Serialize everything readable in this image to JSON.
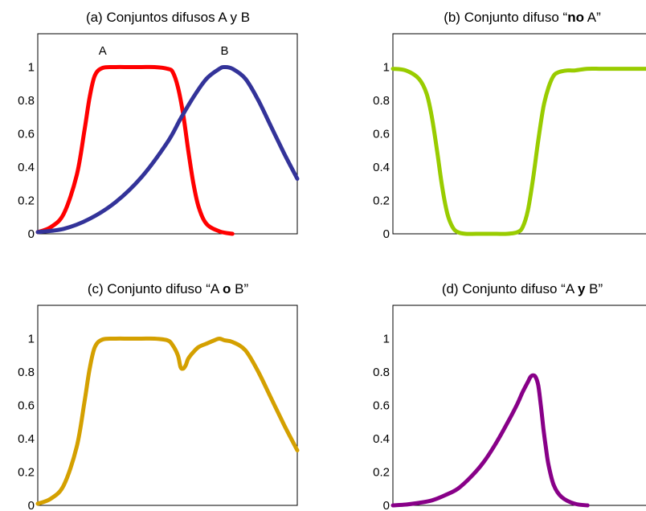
{
  "chart_data": [
    {
      "id": "a",
      "type": "line",
      "title_parts": [
        {
          "text": "(a) Conjuntos difusos A y B",
          "bold": false
        }
      ],
      "ylim": [
        0,
        1.2
      ],
      "yticks": [
        "0",
        "0.2",
        "0.4",
        "0.6",
        "0.8",
        "1"
      ],
      "xlim": [
        0,
        100
      ],
      "series": [
        {
          "name": "A",
          "color": "#ff0000",
          "x": [
            0,
            5,
            10,
            15,
            18,
            20,
            22,
            25,
            30,
            35,
            40,
            45,
            50,
            52,
            54,
            56,
            58,
            60,
            62,
            65,
            70,
            75
          ],
          "y": [
            0.01,
            0.04,
            0.12,
            0.35,
            0.62,
            0.82,
            0.95,
            0.995,
            1.0,
            1.0,
            1.0,
            1.0,
            0.99,
            0.97,
            0.88,
            0.72,
            0.5,
            0.3,
            0.16,
            0.06,
            0.015,
            0.0
          ]
        },
        {
          "name": "B",
          "color": "#333399",
          "x": [
            0,
            10,
            20,
            30,
            40,
            50,
            55,
            60,
            65,
            70,
            72,
            75,
            80,
            85,
            90,
            95,
            100
          ],
          "y": [
            0.01,
            0.03,
            0.09,
            0.19,
            0.34,
            0.55,
            0.69,
            0.82,
            0.93,
            0.99,
            1.0,
            0.99,
            0.93,
            0.8,
            0.64,
            0.48,
            0.33
          ]
        }
      ]
    },
    {
      "id": "b",
      "type": "line",
      "title_parts": [
        {
          "text": "(b) Conjunto difuso “",
          "bold": false
        },
        {
          "text": "no",
          "bold": true
        },
        {
          "text": " A”",
          "bold": false
        }
      ],
      "ylim": [
        0,
        1.2
      ],
      "yticks": [
        "0",
        "0.2",
        "0.4",
        "0.6",
        "0.8",
        "1"
      ],
      "xlim": [
        0,
        100
      ],
      "series": [
        {
          "name": "",
          "color": "#99cc00",
          "x": [
            0,
            5,
            10,
            13,
            15,
            17,
            19,
            21,
            23,
            25,
            28,
            32,
            36,
            40,
            44,
            48,
            50,
            52,
            54,
            56,
            58,
            60,
            62,
            64,
            67,
            70,
            75,
            80,
            85,
            90,
            95,
            100
          ],
          "y": [
            0.99,
            0.98,
            0.93,
            0.84,
            0.7,
            0.5,
            0.28,
            0.12,
            0.04,
            0.01,
            0.0,
            0.0,
            0.0,
            0.0,
            0.0,
            0.01,
            0.04,
            0.14,
            0.33,
            0.56,
            0.76,
            0.88,
            0.95,
            0.97,
            0.98,
            0.98,
            0.99,
            0.99,
            0.99,
            0.99,
            0.99,
            0.99
          ]
        }
      ]
    },
    {
      "id": "c",
      "type": "line",
      "title_parts": [
        {
          "text": "(c) Conjunto difuso “A ",
          "bold": false
        },
        {
          "text": "o",
          "bold": true
        },
        {
          "text": " B”",
          "bold": false
        }
      ],
      "ylim": [
        0,
        1.2
      ],
      "yticks": [
        "0",
        "0.2",
        "0.4",
        "0.6",
        "0.8",
        "1"
      ],
      "xlim": [
        0,
        100
      ],
      "series": [
        {
          "name": "",
          "color": "#d4a000",
          "x": [
            0,
            5,
            10,
            15,
            18,
            20,
            22,
            25,
            30,
            35,
            40,
            45,
            50,
            52,
            54,
            55,
            56,
            57,
            58,
            60,
            62,
            65,
            68,
            70,
            72,
            75,
            80,
            85,
            90,
            95,
            100
          ],
          "y": [
            0.01,
            0.04,
            0.12,
            0.35,
            0.62,
            0.82,
            0.95,
            0.995,
            1.0,
            1.0,
            1.0,
            1.0,
            0.99,
            0.96,
            0.9,
            0.83,
            0.82,
            0.84,
            0.88,
            0.92,
            0.95,
            0.97,
            0.99,
            1.0,
            0.99,
            0.98,
            0.93,
            0.8,
            0.64,
            0.48,
            0.33
          ]
        }
      ]
    },
    {
      "id": "d",
      "type": "line",
      "title_parts": [
        {
          "text": "(d) Conjunto difuso “A ",
          "bold": false
        },
        {
          "text": "y",
          "bold": true
        },
        {
          "text": " B”",
          "bold": false
        }
      ],
      "ylim": [
        0,
        1.2
      ],
      "yticks": [
        "0",
        "0.2",
        "0.4",
        "0.6",
        "0.8",
        "1"
      ],
      "xlim": [
        0,
        100
      ],
      "series": [
        {
          "name": "",
          "color": "#880088",
          "x": [
            0,
            5,
            10,
            15,
            20,
            25,
            30,
            35,
            40,
            45,
            48,
            50,
            52,
            53,
            54,
            55,
            56,
            57,
            58,
            59,
            60,
            62,
            65,
            70,
            75
          ],
          "y": [
            0.0,
            0.005,
            0.015,
            0.03,
            0.06,
            0.1,
            0.17,
            0.26,
            0.38,
            0.52,
            0.61,
            0.68,
            0.74,
            0.77,
            0.78,
            0.77,
            0.72,
            0.6,
            0.46,
            0.34,
            0.24,
            0.12,
            0.05,
            0.01,
            0.0
          ]
        }
      ]
    }
  ]
}
